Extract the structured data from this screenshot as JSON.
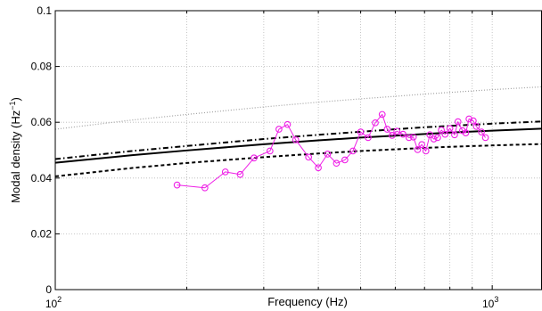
{
  "chart_data": {
    "type": "line",
    "xlabel": "Frequency (Hz)",
    "ylabel": "Modal density (Hz",
    "ylabel_exp": "−1",
    "ylabel_close": ")",
    "xscale": "log",
    "xlim": [
      100,
      1300
    ],
    "ylim": [
      0,
      0.1
    ],
    "grid": true,
    "y_ticks": [
      {
        "value": 0,
        "label": "0"
      },
      {
        "value": 0.02,
        "label": "0.02"
      },
      {
        "value": 0.04,
        "label": "0.04"
      },
      {
        "value": 0.06,
        "label": "0.06"
      },
      {
        "value": 0.08,
        "label": "0.08"
      },
      {
        "value": 0.1,
        "label": "0.1"
      }
    ],
    "x_ticks": [
      {
        "value": 100,
        "base": "10",
        "exp": "2"
      },
      {
        "value": 1000,
        "base": "10",
        "exp": "3"
      }
    ],
    "x_minor": [
      200,
      300,
      400,
      500,
      600,
      700,
      800,
      900
    ],
    "series": [
      {
        "style": "gray-dotted",
        "color": "#a0a0a0",
        "x": [
          100,
          150,
          200,
          300,
          400,
          500,
          600,
          700,
          800,
          1000,
          1300
        ],
        "y": [
          0.0575,
          0.0608,
          0.0628,
          0.0655,
          0.0672,
          0.0684,
          0.0693,
          0.0701,
          0.0707,
          0.0717,
          0.0727
        ]
      },
      {
        "style": "black-dashdot",
        "color": "#000000",
        "x": [
          100,
          150,
          200,
          300,
          400,
          500,
          600,
          700,
          800,
          1000,
          1300
        ],
        "y": [
          0.0468,
          0.0497,
          0.0515,
          0.054,
          0.0555,
          0.0566,
          0.0575,
          0.0582,
          0.0587,
          0.0595,
          0.0603
        ]
      },
      {
        "style": "black-solid",
        "color": "#000000",
        "x": [
          100,
          150,
          200,
          300,
          400,
          500,
          600,
          700,
          800,
          1000,
          1300
        ],
        "y": [
          0.0455,
          0.0482,
          0.0499,
          0.0521,
          0.0535,
          0.0545,
          0.0552,
          0.0558,
          0.0563,
          0.057,
          0.0577
        ]
      },
      {
        "style": "black-dashed",
        "color": "#000000",
        "x": [
          100,
          150,
          200,
          300,
          400,
          500,
          600,
          700,
          800,
          1000,
          1300
        ],
        "y": [
          0.0406,
          0.0436,
          0.0454,
          0.0475,
          0.0488,
          0.0497,
          0.0503,
          0.0508,
          0.0512,
          0.0517,
          0.0522
        ]
      },
      {
        "style": "magenta-markers",
        "color": "#ee1ee6",
        "marker": "circle",
        "x": [
          190,
          220,
          245,
          265,
          285,
          310,
          325,
          340,
          355,
          380,
          400,
          420,
          440,
          460,
          480,
          500,
          520,
          540,
          560,
          575,
          590,
          605,
          625,
          645,
          660,
          675,
          690,
          705,
          720,
          735,
          750,
          765,
          780,
          800,
          820,
          835,
          855,
          870,
          885,
          905,
          920,
          945,
          965
        ],
        "y": [
          0.0375,
          0.0365,
          0.0422,
          0.0413,
          0.0472,
          0.0497,
          0.0575,
          0.0592,
          0.0537,
          0.0475,
          0.0437,
          0.0486,
          0.0453,
          0.0465,
          0.0497,
          0.0565,
          0.0545,
          0.0598,
          0.0628,
          0.0575,
          0.0553,
          0.0568,
          0.0557,
          0.0545,
          0.0547,
          0.0502,
          0.052,
          0.0497,
          0.0555,
          0.054,
          0.0545,
          0.0572,
          0.0557,
          0.0578,
          0.0555,
          0.0602,
          0.057,
          0.0562,
          0.0612,
          0.0605,
          0.0585,
          0.0565,
          0.0545
        ]
      }
    ]
  }
}
